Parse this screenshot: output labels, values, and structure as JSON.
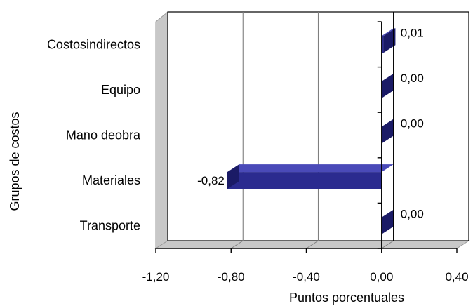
{
  "chart_data": {
    "type": "bar",
    "orientation": "horizontal",
    "style": "3d",
    "title": "",
    "xlabel": "Puntos porcentuales",
    "ylabel": "Grupos de costos",
    "xlim": [
      -1.2,
      0.4
    ],
    "xticks": [
      -1.2,
      -0.8,
      -0.4,
      0.0,
      0.4
    ],
    "xtick_labels": [
      "-1,20",
      "-0,80",
      "-0,40",
      "0,00",
      "0,40"
    ],
    "categories": [
      "Costos indirectos",
      "Equipo",
      "Mano de obra",
      "Materiales",
      "Transporte"
    ],
    "category_labels": [
      "Costosindirectos",
      "Equipo",
      "Mano deobra",
      "Materiales",
      "Transporte"
    ],
    "values": [
      0.01,
      0.0,
      0.0,
      -0.82,
      0.0
    ],
    "value_labels": [
      "0,01",
      "0,00",
      "0,00",
      "-0,82",
      "0,00"
    ],
    "grid": true,
    "legend": "none",
    "colors": {
      "bar_front": "#2b2b8f",
      "bar_top": "#4a4ab8",
      "bar_end": "#1b1b66",
      "wall": "#c8c8c8",
      "floor": "#c8c8c8",
      "gridline": "#7f7f7f"
    }
  }
}
